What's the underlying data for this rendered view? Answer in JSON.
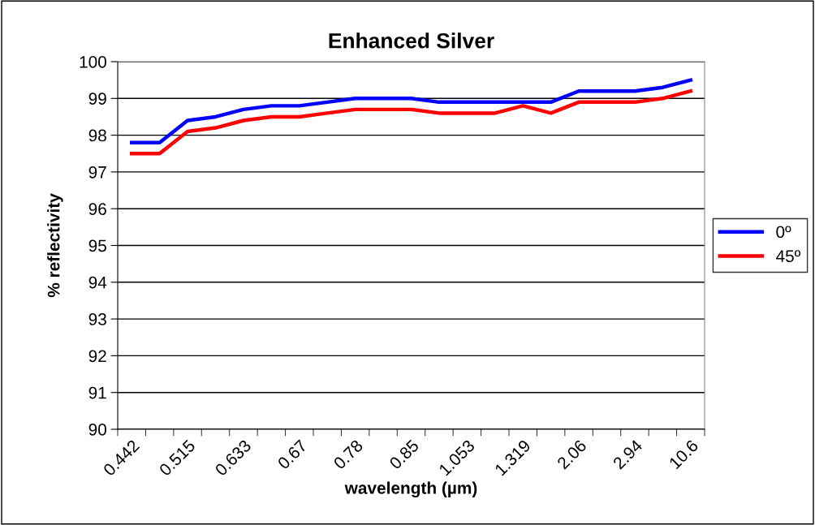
{
  "chart_data": {
    "type": "line",
    "title": "Enhanced Silver",
    "xlabel": "wavelength (µm)",
    "ylabel": "% reflectivity",
    "categories": [
      "0.442",
      null,
      "0.515",
      null,
      "0.633",
      null,
      "0.67",
      null,
      "0.78",
      null,
      "0.85",
      null,
      "1.053",
      null,
      "1.319",
      null,
      "2.06",
      null,
      "2.94",
      null,
      "10.6"
    ],
    "series": [
      {
        "name": "0º",
        "color": "#0000ff",
        "values": [
          97.8,
          97.8,
          98.4,
          98.5,
          98.7,
          98.8,
          98.8,
          98.9,
          99.0,
          99.0,
          99.0,
          98.9,
          98.9,
          98.9,
          98.9,
          98.9,
          99.2,
          99.2,
          99.2,
          99.3,
          99.5
        ]
      },
      {
        "name": "45º",
        "color": "#ff0000",
        "values": [
          97.5,
          97.5,
          98.1,
          98.2,
          98.4,
          98.5,
          98.5,
          98.6,
          98.7,
          98.7,
          98.7,
          98.6,
          98.6,
          98.6,
          98.8,
          98.6,
          98.9,
          98.9,
          98.9,
          99.0,
          99.2
        ]
      }
    ],
    "ylim": [
      90,
      100
    ],
    "yticks": [
      90,
      91,
      92,
      93,
      94,
      95,
      96,
      97,
      98,
      99,
      100
    ],
    "grid": "y",
    "legend": "right",
    "marker": "none",
    "line_style": "solid"
  }
}
